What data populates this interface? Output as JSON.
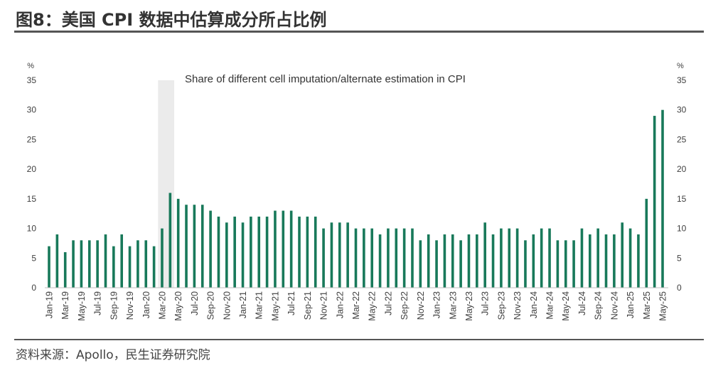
{
  "header": {
    "figure_title": "图8：美国 CPI 数据中估算成分所占比例"
  },
  "footer": {
    "source": "资料来源：Apollo，民生证券研究院"
  },
  "chart_data": {
    "type": "bar",
    "title": "Share of different cell imputation/alternate estimation in CPI",
    "y_unit_left": "%",
    "y_unit_right": "%",
    "ylim": [
      0,
      35
    ],
    "yticks": [
      0,
      5,
      10,
      15,
      20,
      25,
      30,
      35
    ],
    "grid": false,
    "x": [
      "Jan-19",
      "Feb-19",
      "Mar-19",
      "Apr-19",
      "May-19",
      "Jun-19",
      "Jul-19",
      "Aug-19",
      "Sep-19",
      "Oct-19",
      "Nov-19",
      "Dec-19",
      "Jan-20",
      "Feb-20",
      "Mar-20",
      "Apr-20",
      "May-20",
      "Jun-20",
      "Jul-20",
      "Aug-20",
      "Sep-20",
      "Oct-20",
      "Nov-20",
      "Dec-20",
      "Jan-21",
      "Feb-21",
      "Mar-21",
      "Apr-21",
      "May-21",
      "Jun-21",
      "Jul-21",
      "Aug-21",
      "Sep-21",
      "Oct-21",
      "Nov-21",
      "Dec-21",
      "Jan-22",
      "Feb-22",
      "Mar-22",
      "Apr-22",
      "May-22",
      "Jun-22",
      "Jul-22",
      "Aug-22",
      "Sep-22",
      "Oct-22",
      "Nov-22",
      "Dec-22",
      "Jan-23",
      "Feb-23",
      "Mar-23",
      "Apr-23",
      "May-23",
      "Jun-23",
      "Jul-23",
      "Aug-23",
      "Sep-23",
      "Oct-23",
      "Nov-23",
      "Dec-23",
      "Jan-24",
      "Feb-24",
      "Mar-24",
      "Apr-24",
      "May-24",
      "Jun-24",
      "Jul-24",
      "Aug-24",
      "Sep-24",
      "Oct-24",
      "Nov-24",
      "Dec-24",
      "Jan-25",
      "Feb-25",
      "Mar-25",
      "Apr-25",
      "May-25"
    ],
    "xtick_labels": [
      "Jan-19",
      "Mar-19",
      "May-19",
      "Jul-19",
      "Sep-19",
      "Nov-19",
      "Jan-20",
      "Mar-20",
      "May-20",
      "Jul-20",
      "Sep-20",
      "Nov-20",
      "Jan-21",
      "Mar-21",
      "May-21",
      "Jul-21",
      "Sep-21",
      "Nov-21",
      "Jan-22",
      "Mar-22",
      "May-22",
      "Jul-22",
      "Sep-22",
      "Nov-22",
      "Jan-23",
      "Mar-23",
      "May-23",
      "Jul-23",
      "Sep-23",
      "Nov-23",
      "Jan-24",
      "Mar-24",
      "May-24",
      "Jul-24",
      "Sep-24",
      "Nov-24",
      "Jan-25",
      "Mar-25",
      "May-25"
    ],
    "values": [
      7,
      9,
      6,
      8,
      8,
      8,
      8,
      9,
      7,
      9,
      7,
      8,
      8,
      7,
      10,
      16,
      15,
      14,
      14,
      14,
      13,
      12,
      11,
      12,
      11,
      12,
      12,
      12,
      13,
      13,
      13,
      12,
      12,
      12,
      10,
      11,
      11,
      11,
      10,
      10,
      10,
      9,
      10,
      10,
      10,
      10,
      8,
      9,
      8,
      9,
      9,
      8,
      9,
      9,
      11,
      9,
      10,
      10,
      10,
      8,
      9,
      10,
      10,
      8,
      8,
      8,
      10,
      9,
      10,
      9,
      9,
      11,
      10,
      9,
      15,
      29,
      30
    ],
    "shaded_period": [
      "Mar-20",
      "Apr-20"
    ],
    "colors": {
      "bar": "#18795a",
      "shading": "#ebebeb"
    }
  }
}
